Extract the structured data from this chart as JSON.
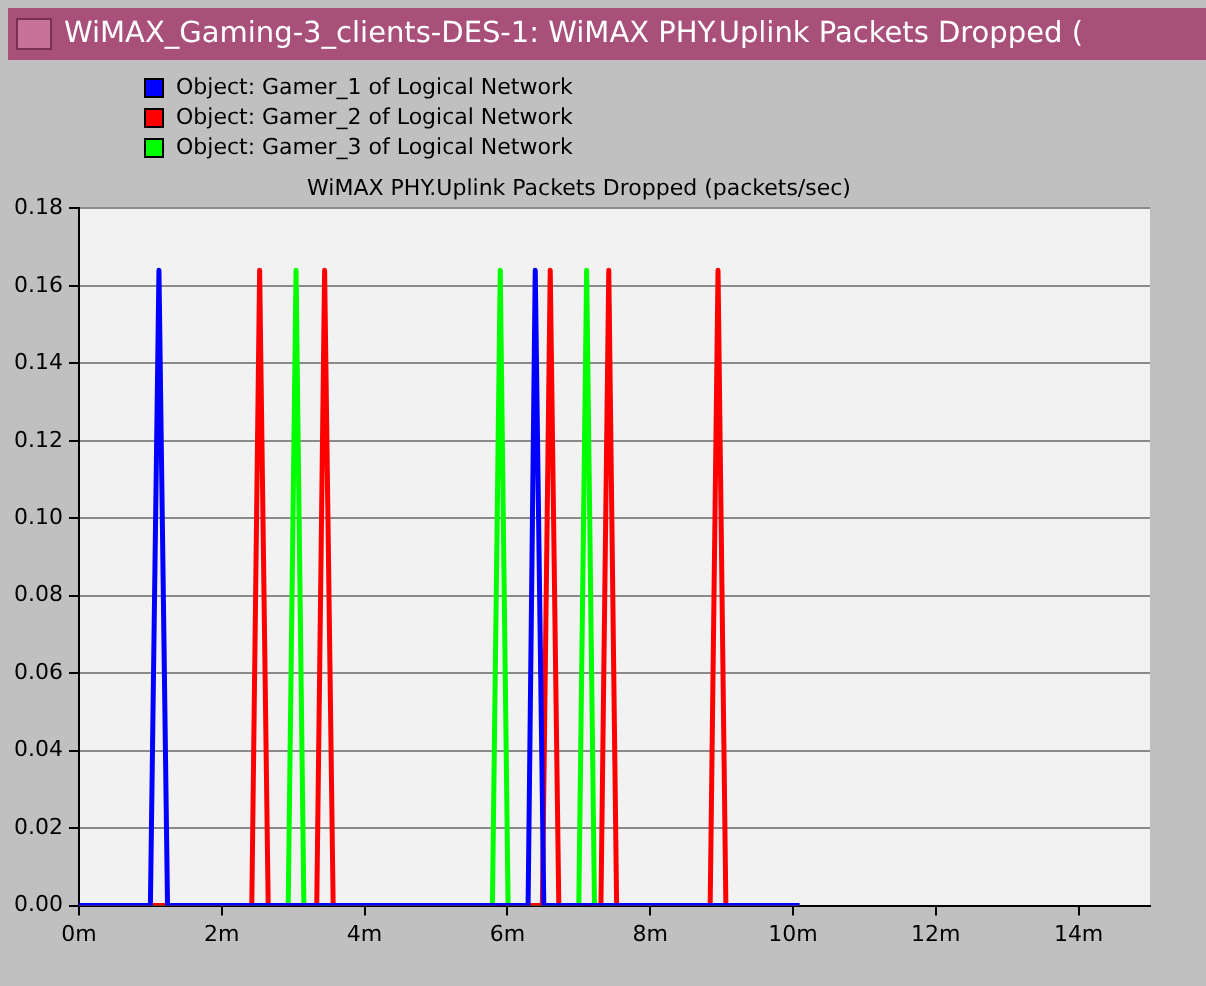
{
  "chart_data": {
    "type": "line",
    "title": "WiMAX_Gaming-3_clients-DES-1: WiMAX PHY.Uplink Packets Dropped (",
    "subtitle": "WiMAX PHY.Uplink Packets Dropped (packets/sec)",
    "series": [
      {
        "name": "Object: Gamer_1 of Logical Network",
        "color": "#0000ff",
        "x": [
          0,
          1.0,
          1.12,
          1.24,
          6.29,
          6.39,
          6.51,
          10.09
        ],
        "values": [
          0,
          0,
          0.164,
          0,
          0,
          0.164,
          0,
          0
        ]
      },
      {
        "name": "Object: Gamer_2 of Logical Network",
        "color": "#ff0000",
        "x": [
          0,
          2.42,
          2.53,
          2.65,
          3.33,
          3.44,
          3.56,
          6.49,
          6.6,
          6.72,
          7.31,
          7.42,
          7.53,
          8.84,
          8.95,
          9.06,
          10.09
        ],
        "values": [
          0,
          0,
          0.164,
          0,
          0,
          0.164,
          0,
          0,
          0.164,
          0,
          0,
          0.164,
          0,
          0,
          0.164,
          0,
          0
        ]
      },
      {
        "name": "Object: Gamer_3 of Logical Network",
        "color": "#00ff00",
        "x": [
          0,
          2.93,
          3.04,
          3.15,
          5.79,
          5.9,
          6.01,
          7.0,
          7.11,
          7.22,
          10.09
        ],
        "values": [
          0,
          0,
          0.164,
          0,
          0,
          0.164,
          0,
          0,
          0.164,
          0,
          0
        ]
      }
    ],
    "xlim": [
      0,
      15
    ],
    "xticks": [
      {
        "value": 0,
        "label": "0m"
      },
      {
        "value": 2,
        "label": "2m"
      },
      {
        "value": 4,
        "label": "4m"
      },
      {
        "value": 6,
        "label": "6m"
      },
      {
        "value": 8,
        "label": "8m"
      },
      {
        "value": 10,
        "label": "10m"
      },
      {
        "value": 12,
        "label": "12m"
      },
      {
        "value": 14,
        "label": "14m"
      }
    ],
    "ylim": [
      0,
      0.18
    ],
    "yticks": [
      {
        "value": 0,
        "label": "0.00"
      },
      {
        "value": 0.02,
        "label": "0.02"
      },
      {
        "value": 0.04,
        "label": "0.04"
      },
      {
        "value": 0.06,
        "label": "0.06"
      },
      {
        "value": 0.08,
        "label": "0.08"
      },
      {
        "value": 0.1,
        "label": "0.10"
      },
      {
        "value": 0.12,
        "label": "0.12"
      },
      {
        "value": 0.14,
        "label": "0.14"
      },
      {
        "value": 0.16,
        "label": "0.16"
      },
      {
        "value": 0.18,
        "label": "0.18"
      }
    ],
    "grid": "y",
    "legend": "top left",
    "marker": "none",
    "line_style": "solid"
  }
}
